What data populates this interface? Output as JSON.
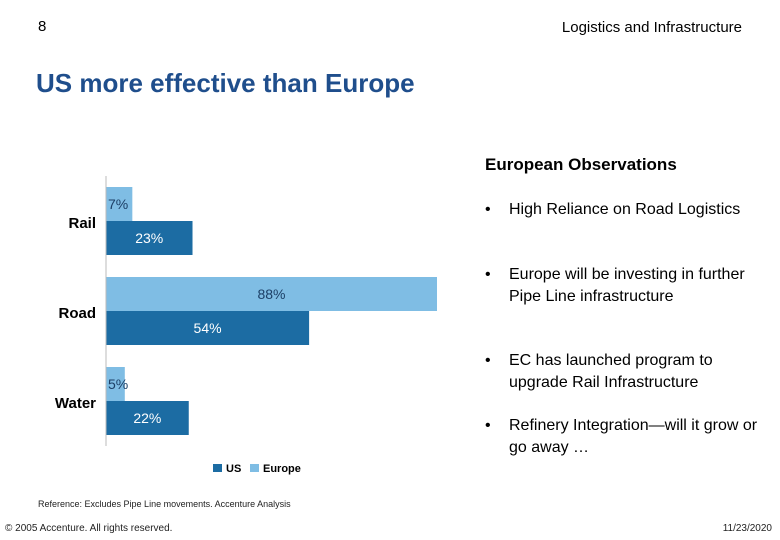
{
  "header": {
    "page_number": "8",
    "section_title": "Logistics and Infrastructure",
    "slide_title": "US more effective than Europe"
  },
  "observations": {
    "heading": "European Observations",
    "bullet_symbol": "•",
    "bullets": [
      "High Reliance on Road Logistics",
      "Europe will be investing in further Pipe Line infrastructure",
      "EC has launched program to upgrade Rail Infrastructure",
      "Refinery Integration—will it grow or go away …"
    ]
  },
  "chart_data": {
    "type": "bar",
    "orientation": "horizontal",
    "categories": [
      "Rail",
      "Road",
      "Water"
    ],
    "series": [
      {
        "name": "Europe",
        "values": [
          7,
          88,
          5
        ],
        "labels": [
          "7%",
          "88%",
          "5%"
        ],
        "color": "#7fbde4"
      },
      {
        "name": "US",
        "values": [
          23,
          54,
          22
        ],
        "labels": [
          "23%",
          "54%",
          "22%"
        ],
        "color": "#1c6ca3"
      }
    ],
    "xlim": [
      0,
      88
    ],
    "legend": [
      "US",
      "Europe"
    ],
    "legend_position": "bottom"
  },
  "footer": {
    "reference": "Reference: Excludes Pipe Line movements. Accenture Analysis",
    "copyright": "© 2005 Accenture. All rights reserved.",
    "date": "11/23/2020"
  }
}
